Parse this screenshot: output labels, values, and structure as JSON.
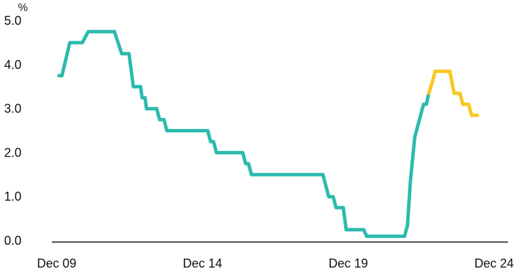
{
  "chart_data": {
    "type": "line",
    "ylabel": "%",
    "ylim": [
      0,
      5
    ],
    "yticks": [
      "0.0",
      "1.0",
      "2.0",
      "3.0",
      "4.0",
      "5.0"
    ],
    "yticks_values": [
      0,
      1,
      2,
      3,
      4,
      5
    ],
    "xticks": [
      "Dec 09",
      "Dec 14",
      "Dec 19",
      "Dec 24"
    ],
    "xticks_values": [
      2009.92,
      2014.92,
      2019.92,
      2024.92
    ],
    "grid": false,
    "series": [
      {
        "color": "#2bbbad",
        "points": [
          [
            2010.0,
            3.75
          ],
          [
            2010.1,
            3.75
          ],
          [
            2010.37,
            4.5
          ],
          [
            2010.8,
            4.5
          ],
          [
            2011.0,
            4.75
          ],
          [
            2011.9,
            4.75
          ],
          [
            2012.15,
            4.25
          ],
          [
            2012.4,
            4.25
          ],
          [
            2012.5,
            3.75
          ],
          [
            2012.55,
            3.5
          ],
          [
            2012.8,
            3.5
          ],
          [
            2012.85,
            3.25
          ],
          [
            2012.95,
            3.25
          ],
          [
            2013.0,
            3.0
          ],
          [
            2013.35,
            3.0
          ],
          [
            2013.45,
            2.75
          ],
          [
            2013.6,
            2.75
          ],
          [
            2013.7,
            2.5
          ],
          [
            2015.1,
            2.5
          ],
          [
            2015.2,
            2.25
          ],
          [
            2015.3,
            2.25
          ],
          [
            2015.4,
            2.0
          ],
          [
            2016.3,
            2.0
          ],
          [
            2016.4,
            1.75
          ],
          [
            2016.5,
            1.75
          ],
          [
            2016.6,
            1.5
          ],
          [
            2019.05,
            1.5
          ],
          [
            2019.25,
            1.0
          ],
          [
            2019.4,
            1.0
          ],
          [
            2019.5,
            0.75
          ],
          [
            2019.75,
            0.75
          ],
          [
            2019.85,
            0.25
          ],
          [
            2020.45,
            0.25
          ],
          [
            2020.55,
            0.1
          ],
          [
            2021.85,
            0.1
          ],
          [
            2021.95,
            0.35
          ],
          [
            2022.05,
            1.35
          ],
          [
            2022.2,
            2.35
          ],
          [
            2022.5,
            3.1
          ],
          [
            2022.6,
            3.1
          ],
          [
            2022.68,
            3.35
          ]
        ]
      },
      {
        "color": "#f8c822",
        "points": [
          [
            2022.68,
            3.35
          ],
          [
            2022.8,
            3.6
          ],
          [
            2022.9,
            3.85
          ],
          [
            2023.4,
            3.85
          ],
          [
            2023.55,
            3.35
          ],
          [
            2023.75,
            3.35
          ],
          [
            2023.85,
            3.1
          ],
          [
            2024.05,
            3.1
          ],
          [
            2024.15,
            2.85
          ],
          [
            2024.35,
            2.85
          ]
        ]
      }
    ]
  }
}
